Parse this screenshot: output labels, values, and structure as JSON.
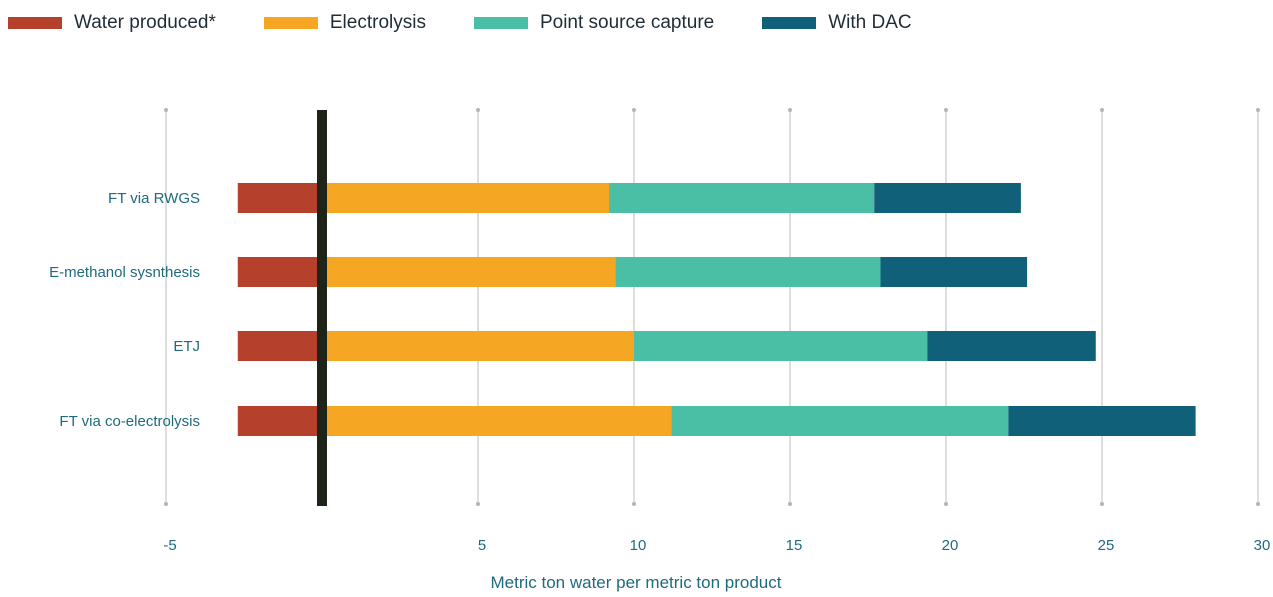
{
  "chart_data": {
    "type": "bar",
    "orientation": "horizontal",
    "stacked": true,
    "categories": [
      "FT via RWGS",
      "E-methanol sysnthesis",
      "ETJ",
      "FT via co-electrolysis"
    ],
    "series": [
      {
        "name": "Water produced*",
        "color": "#b5402b",
        "values": [
          -2.7,
          -2.7,
          -2.7,
          -2.7
        ]
      },
      {
        "name": "Electrolysis",
        "color": "#f5a623",
        "values": [
          9.2,
          9.4,
          10.0,
          11.2
        ]
      },
      {
        "name": "Point source capture",
        "color": "#4bbfa5",
        "values": [
          8.5,
          8.5,
          9.4,
          10.8
        ]
      },
      {
        "name": "With DAC",
        "color": "#10607a",
        "values": [
          4.7,
          4.7,
          5.4,
          6.0
        ]
      }
    ],
    "xlim": [
      -5,
      30
    ],
    "x_ticks": [
      -5,
      5,
      10,
      15,
      20,
      25,
      30
    ],
    "xlabel": "Metric ton water per metric ton product",
    "legend_position": "top-left",
    "grid": "vertical",
    "zero_line_color": "#1f2418"
  }
}
